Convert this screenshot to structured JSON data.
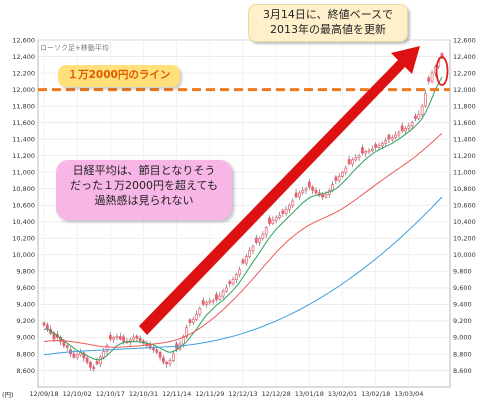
{
  "chart_data": {
    "type": "candlestick",
    "chart_label": "ローソク足+移動平均",
    "unit": "(円)",
    "ylim": [
      8400,
      12600
    ],
    "y_ticks": [
      8600,
      8800,
      9000,
      9200,
      9400,
      9600,
      9800,
      10000,
      10200,
      10400,
      10600,
      10800,
      11000,
      11200,
      11400,
      11600,
      11800,
      12000,
      12200,
      12400,
      12600
    ],
    "y_tick_labels": [
      "8,600",
      "8,800",
      "9,000",
      "9,200",
      "9,400",
      "9,600",
      "9,800",
      "10,000",
      "10,200",
      "10,400",
      "10,600",
      "10,800",
      "11,000",
      "11,200",
      "11,400",
      "11,600",
      "11,800",
      "12,000",
      "12,200",
      "12,400",
      "12,600"
    ],
    "x_tick_labels": [
      "12/09/18",
      "12/10/02",
      "12/10/17",
      "12/10/31",
      "12/11/14",
      "12/11/29",
      "12/12/13",
      "12/12/28",
      "13/01/18",
      "13/02/01",
      "13/02/18",
      "13/03/04"
    ],
    "x_tick_index": [
      0,
      10,
      20,
      30,
      40,
      50,
      60,
      70,
      80,
      90,
      100,
      110
    ],
    "close": [
      9150,
      9100,
      9050,
      8980,
      9000,
      8950,
      8900,
      8880,
      8800,
      8760,
      8790,
      8820,
      8750,
      8700,
      8640,
      8620,
      8680,
      8760,
      8830,
      8900,
      8980,
      9000,
      9010,
      8980,
      8950,
      8940,
      8970,
      9000,
      8990,
      8960,
      8930,
      8900,
      8870,
      8850,
      8820,
      8760,
      8700,
      8680,
      8720,
      8800,
      8860,
      8920,
      9010,
      9120,
      9180,
      9220,
      9280,
      9350,
      9400,
      9420,
      9440,
      9450,
      9460,
      9500,
      9560,
      9600,
      9650,
      9700,
      9760,
      9820,
      9900,
      9980,
      10050,
      10100,
      10150,
      10200,
      10250,
      10330,
      10380,
      10420,
      10450,
      10480,
      10500,
      10550,
      10600,
      10650,
      10700,
      10750,
      10780,
      10800,
      10820,
      10780,
      10750,
      10720,
      10700,
      10730,
      10780,
      10850,
      10900,
      10950,
      11000,
      11050,
      11100,
      11150,
      11180,
      11200,
      11230,
      11250,
      11260,
      11280,
      11300,
      11320,
      11350,
      11380,
      11400,
      11420,
      11450,
      11480,
      11500,
      11530,
      11560,
      11600,
      11650,
      11700,
      11800,
      11950,
      12100,
      12200,
      12280,
      12350,
      12380
    ],
    "ma_short": [
      9100,
      9100,
      9080,
      9050,
      9020,
      8990,
      8960,
      8930,
      8900,
      8870,
      8840,
      8820,
      8800,
      8780,
      8760,
      8740,
      8730,
      8730,
      8750,
      8780,
      8820,
      8860,
      8900,
      8920,
      8940,
      8950,
      8950,
      8950,
      8950,
      8945,
      8940,
      8930,
      8920,
      8910,
      8890,
      8870,
      8850,
      8830,
      8820,
      8830,
      8850,
      8880,
      8910,
      8950,
      9000,
      9050,
      9100,
      9160,
      9220,
      9270,
      9310,
      9350,
      9390,
      9420,
      9450,
      9490,
      9530,
      9570,
      9620,
      9670,
      9730,
      9790,
      9850,
      9910,
      9970,
      10030,
      10090,
      10150,
      10210,
      10260,
      10310,
      10350,
      10390,
      10430,
      10470,
      10510,
      10550,
      10590,
      10630,
      10660,
      10690,
      10710,
      10720,
      10730,
      10740,
      10750,
      10760,
      10780,
      10800,
      10830,
      10870,
      10910,
      10950,
      11000,
      11040,
      11080,
      11120,
      11160,
      11190,
      11220,
      11250,
      11270,
      11290,
      11310,
      11330,
      11350,
      11380,
      11400,
      11430,
      11460,
      11490,
      11520,
      11560,
      11600,
      11650,
      11720,
      11800,
      11900,
      12000,
      12080,
      12150
    ],
    "ma_mid": [
      8950,
      8955,
      8960,
      8962,
      8963,
      8962,
      8960,
      8955,
      8950,
      8945,
      8940,
      8933,
      8926,
      8920,
      8912,
      8905,
      8898,
      8892,
      8888,
      8885,
      8883,
      8882,
      8882,
      8883,
      8885,
      8887,
      8890,
      8893,
      8896,
      8900,
      8905,
      8910,
      8915,
      8920,
      8925,
      8930,
      8935,
      8942,
      8950,
      8960,
      8972,
      8986,
      9002,
      9020,
      9040,
      9062,
      9086,
      9112,
      9140,
      9170,
      9200,
      9232,
      9266,
      9300,
      9336,
      9374,
      9412,
      9452,
      9492,
      9534,
      9576,
      9620,
      9664,
      9710,
      9756,
      9802,
      9848,
      9894,
      9940,
      9986,
      10030,
      10072,
      10112,
      10150,
      10186,
      10220,
      10252,
      10282,
      10310,
      10336,
      10360,
      10382,
      10402,
      10420,
      10438,
      10456,
      10474,
      10494,
      10514,
      10536,
      10560,
      10586,
      10612,
      10640,
      10668,
      10698,
      10728,
      10758,
      10788,
      10818,
      10848,
      10878,
      10906,
      10934,
      10962,
      10990,
      11018,
      11046,
      11074,
      11102,
      11130,
      11160,
      11190,
      11222,
      11256,
      11290,
      11326,
      11362,
      11398,
      11434,
      11470
    ],
    "ma_long": [
      8790,
      8795,
      8800,
      8805,
      8810,
      8815,
      8818,
      8822,
      8825,
      8828,
      8830,
      8833,
      8836,
      8838,
      8840,
      8842,
      8844,
      8846,
      8848,
      8850,
      8852,
      8854,
      8856,
      8858,
      8860,
      8862,
      8864,
      8866,
      8868,
      8870,
      8872,
      8874,
      8876,
      8878,
      8880,
      8882,
      8884,
      8886,
      8888,
      8890,
      8893,
      8896,
      8900,
      8905,
      8910,
      8916,
      8922,
      8928,
      8935,
      8942,
      8950,
      8958,
      8966,
      8975,
      8984,
      8994,
      9004,
      9015,
      9026,
      9038,
      9050,
      9063,
      9076,
      9090,
      9104,
      9119,
      9134,
      9150,
      9166,
      9183,
      9200,
      9218,
      9236,
      9255,
      9274,
      9294,
      9314,
      9335,
      9356,
      9378,
      9400,
      9423,
      9446,
      9470,
      9494,
      9519,
      9544,
      9570,
      9596,
      9623,
      9650,
      9678,
      9706,
      9735,
      9764,
      9794,
      9824,
      9855,
      9886,
      9918,
      9950,
      9983,
      10016,
      10050,
      10084,
      10119,
      10154,
      10190,
      10226,
      10263,
      10300,
      10338,
      10376,
      10415,
      10454,
      10494,
      10534,
      10575,
      10616,
      10658,
      10700
    ],
    "reference_line": {
      "value": 12000,
      "color": "#f07820"
    },
    "colors": {
      "candle": "#e8606e",
      "ma_short": "#2aa25a",
      "ma_mid": "#ec5a5a",
      "ma_long": "#3d9fe0",
      "arrow": "#dd1111",
      "highlight": "#e02020"
    }
  },
  "annotations": {
    "top_line1": "3月14日に、終値ベースで",
    "top_line2": "2013年の最高値を更新",
    "line_label": "１万2000円のライン",
    "mid_line1": "日経平均は、節目となりそう",
    "mid_line2": "だった１万2000円を超えても",
    "mid_line3": "過熱感は見られない"
  }
}
